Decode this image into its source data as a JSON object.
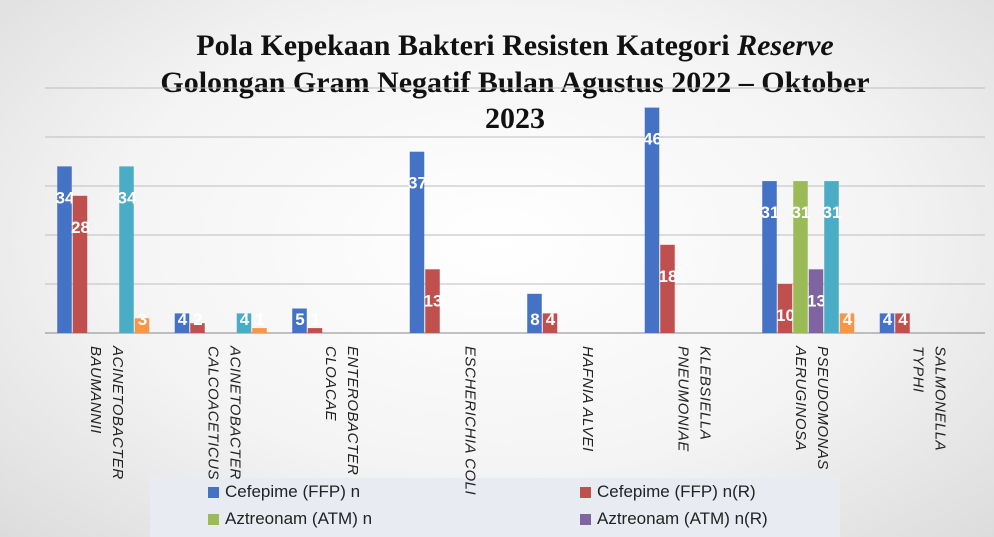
{
  "chart_data": {
    "type": "bar",
    "title": {
      "line1": "Pola Kepekaan Bakteri Resisten Kategori",
      "line1_italic": "Reserve",
      "line2": "Golongan Gram Negatif Bulan Agustus 2022 – Oktober",
      "line3": "2023"
    },
    "categories": [
      "ACINETOBACTER BAUMANNII",
      "ACINETOBACTER CALCOACETICUS",
      "ENTEROBACTER CLOACAE",
      "ESCHERICHIA COLI",
      "HAFNIA ALVEI",
      "KLEBSIELLA PNEUMONIAE",
      "PSEUDOMONAS AERUGINOSA",
      "SALMONELLA TYPHI"
    ],
    "series": [
      {
        "name": "Cefepime (FFP) n",
        "color": "#4472c4",
        "values": [
          34,
          4,
          5,
          37,
          8,
          46,
          31,
          4
        ]
      },
      {
        "name": "Cefepime (FFP) n(R)",
        "color": "#c0504d",
        "values": [
          28,
          2,
          1,
          13,
          4,
          18,
          10,
          4
        ]
      },
      {
        "name": "Aztreonam (ATM) n",
        "color": "#9bbb59",
        "values": [
          null,
          null,
          null,
          null,
          null,
          null,
          31,
          null
        ]
      },
      {
        "name": "Aztreonam (ATM) n(R)",
        "color": "#8064a2",
        "values": [
          null,
          null,
          null,
          null,
          null,
          null,
          13,
          null
        ]
      },
      {
        "color": "#4bacc6",
        "values": [
          34,
          4,
          null,
          null,
          null,
          null,
          31,
          null
        ]
      },
      {
        "color": "#f79646",
        "values": [
          3,
          1,
          null,
          null,
          null,
          null,
          4,
          null
        ]
      }
    ],
    "ylim": [
      0,
      50
    ],
    "yticks": [
      0,
      10,
      20,
      30,
      40,
      50
    ],
    "grid": true,
    "tick_labels": false,
    "legend": "bottom"
  }
}
